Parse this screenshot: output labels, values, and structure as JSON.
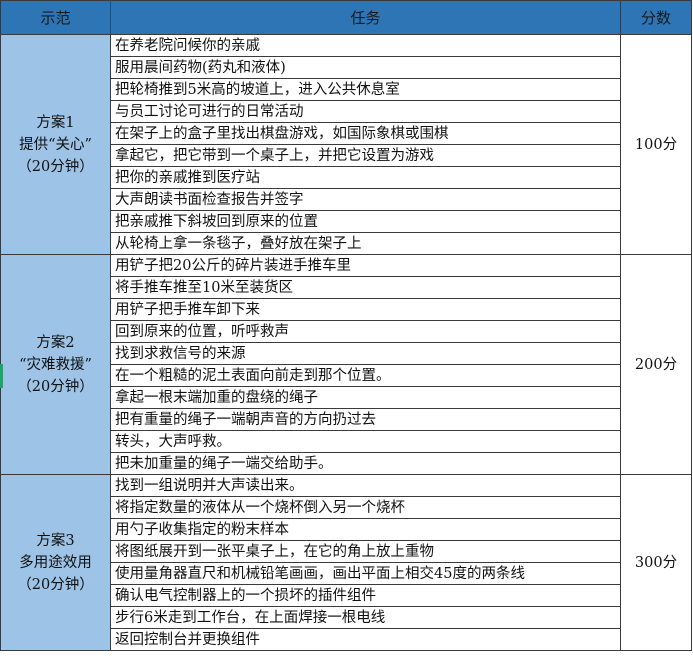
{
  "header": {
    "demo": "示范",
    "task": "任务",
    "score": "分数"
  },
  "colors": {
    "header_bg": "#2e75b6",
    "plan_bg": "#9dc3e6"
  },
  "groups": [
    {
      "plan_lines": [
        "方案1",
        "提供“关心”",
        "（20分钟）"
      ],
      "score": "100分",
      "tasks": [
        "在养老院问候你的亲戚",
        "服用晨间药物(药丸和液体)",
        "把轮椅推到5米高的坡道上，进入公共休息室",
        "与员工讨论可进行的日常活动",
        "在架子上的盒子里找出棋盘游戏，如国际象棋或围棋",
        "拿起它，把它带到一个桌子上，并把它设置为游戏",
        "把你的亲戚推到医疗站",
        "大声朗读书面检查报告并签字",
        "把亲戚推下斜坡回到原来的位置",
        "从轮椅上拿一条毯子，叠好放在架子上"
      ]
    },
    {
      "plan_lines": [
        "方案2",
        "“灾难救援”",
        "（20分钟）"
      ],
      "score": "200分",
      "tasks": [
        "用铲子把20公斤的碎片装进手推车里",
        "将手推车推至10米至装货区",
        "用铲子把手推车卸下来",
        "回到原来的位置，听呼救声",
        "找到求救信号的来源",
        "在一个粗糙的泥土表面向前走到那个位置。",
        "拿起一根末端加重的盘绕的绳子",
        "把有重量的绳子一端朝声音的方向扔过去",
        "转头，大声呼救。",
        "把未加重量的绳子一端交给助手。"
      ]
    },
    {
      "plan_lines": [
        "方案3",
        "多用途效用",
        "（20分钟）"
      ],
      "score": "300分",
      "tasks": [
        "找到一组说明并大声读出来。",
        "将指定数量的液体从一个烧杯倒入另一个烧杯",
        "用勺子收集指定的粉末样本",
        "将图纸展开到一张平桌子上，在它的角上放上重物",
        "使用量角器直尺和机械铅笔画画，画出平面上相交45度的两条线",
        "确认电气控制器上的一个损坏的插件组件",
        "步行6米走到工作台，在上面焊接一根电线",
        "返回控制台并更换组件"
      ]
    }
  ]
}
